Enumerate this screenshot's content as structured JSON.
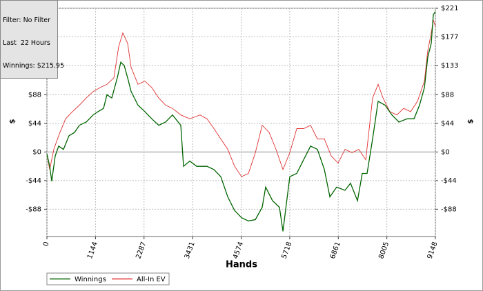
{
  "info": [
    "Filter: No Filter",
    "Last  22 Hours",
    "Winnings: $215.95"
  ],
  "chart_data": {
    "type": "line",
    "x_label": "Hands",
    "y_label": "$",
    "xlim": [
      0,
      9148
    ],
    "xticks": [
      0,
      1144,
      2287,
      3431,
      4574,
      5718,
      6861,
      8005,
      9148
    ],
    "ylim": [
      -130,
      221
    ],
    "yticks": [
      {
        "value": 221,
        "label": "$221"
      },
      {
        "value": 177,
        "label": "$177"
      },
      {
        "value": 133,
        "label": "$133"
      },
      {
        "value": 88,
        "label": "$88"
      },
      {
        "value": 44,
        "label": "$44"
      },
      {
        "value": 0,
        "label": "$0"
      },
      {
        "value": -44,
        "label": "-$44"
      },
      {
        "value": -88,
        "label": "-$88"
      }
    ],
    "grid": true,
    "series": [
      {
        "name": "Winnings",
        "color": "#006400",
        "x": [
          0,
          65,
          114,
          195,
          276,
          390,
          520,
          650,
          764,
          926,
          1089,
          1203,
          1333,
          1414,
          1528,
          1658,
          1739,
          1820,
          1901,
          1983,
          2145,
          2308,
          2470,
          2633,
          2795,
          2958,
          3153,
          3218,
          3364,
          3526,
          3770,
          3933,
          4095,
          4258,
          4420,
          4583,
          4745,
          4908,
          5070,
          5151,
          5314,
          5476,
          5558,
          5639,
          5720,
          5883,
          6045,
          6208,
          6370,
          6533,
          6663,
          6825,
          7020,
          7150,
          7313,
          7426,
          7540,
          7670,
          7800,
          7963,
          8125,
          8288,
          8483,
          8645,
          8775,
          8889,
          8970,
          9051,
          9100,
          9148
        ],
        "values": [
          -3,
          -22,
          -45,
          -6,
          9,
          4,
          25,
          30,
          41,
          46,
          57,
          62,
          67,
          88,
          83,
          114,
          138,
          133,
          114,
          93,
          72,
          62,
          51,
          41,
          46,
          57,
          41,
          -22,
          -14,
          -22,
          -22,
          -27,
          -38,
          -69,
          -90,
          -101,
          -106,
          -104,
          -85,
          -54,
          -75,
          -85,
          -122,
          -80,
          -38,
          -33,
          -12,
          9,
          4,
          -27,
          -69,
          -54,
          -59,
          -48,
          -75,
          -33,
          -33,
          20,
          78,
          72,
          57,
          46,
          51,
          51,
          72,
          99,
          146,
          167,
          211,
          215.95
        ]
      },
      {
        "name": "All-In EV",
        "color": "#e03030",
        "x": [
          0,
          65,
          163,
          276,
          439,
          601,
          764,
          926,
          1089,
          1251,
          1414,
          1576,
          1690,
          1788,
          1901,
          1983,
          2145,
          2308,
          2470,
          2633,
          2795,
          2958,
          3153,
          3364,
          3608,
          3770,
          3933,
          4095,
          4258,
          4420,
          4583,
          4745,
          4908,
          5070,
          5233,
          5395,
          5558,
          5720,
          5883,
          6045,
          6208,
          6370,
          6533,
          6695,
          6858,
          7020,
          7183,
          7345,
          7508,
          7670,
          7800,
          7914,
          8076,
          8239,
          8401,
          8564,
          8726,
          8889,
          8970,
          9051,
          9100,
          9148
        ],
        "values": [
          -3,
          -27,
          4,
          25,
          51,
          62,
          72,
          83,
          93,
          99,
          104,
          114,
          162,
          183,
          167,
          130,
          104,
          109,
          99,
          83,
          72,
          67,
          57,
          51,
          57,
          51,
          36,
          20,
          4,
          -22,
          -38,
          -33,
          -1,
          41,
          30,
          4,
          -27,
          -1,
          36,
          36,
          41,
          20,
          20,
          -6,
          -17,
          4,
          -1,
          4,
          -12,
          83,
          104,
          83,
          62,
          57,
          67,
          62,
          78,
          109,
          156,
          183,
          203,
          193
        ]
      }
    ]
  }
}
